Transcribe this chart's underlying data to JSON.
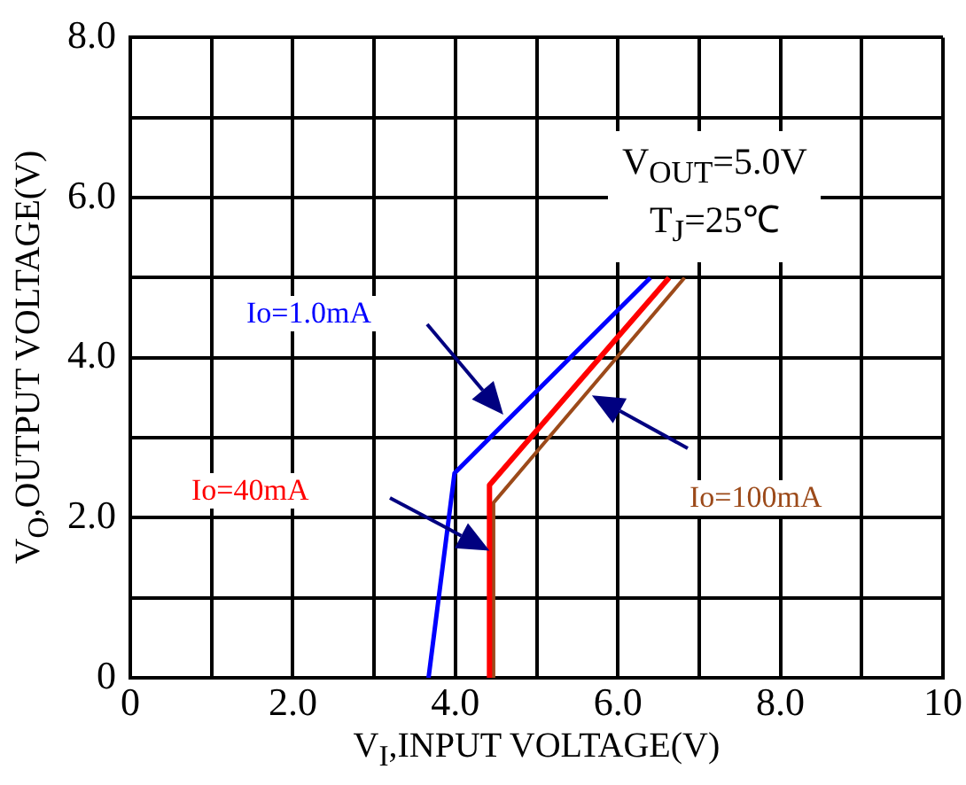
{
  "chart_data": {
    "type": "line",
    "xlabel": "V$_{I}$,INPUT VOLTAGE(V)",
    "ylabel": "V$_{O}$,OUTPUT VOLTAGE(V)",
    "annotations": [
      "V$_{OUT}$=5.0V",
      "T$_{J}$=25℃"
    ],
    "xlim": [
      0,
      10
    ],
    "ylim": [
      0,
      8
    ],
    "xticks": [
      0,
      {
        "value": 1,
        "label": null
      },
      {
        "value": 2,
        "label": "2.0"
      },
      {
        "value": 3,
        "label": null
      },
      {
        "value": 4,
        "label": "4.0"
      },
      {
        "value": 5,
        "label": null
      },
      {
        "value": 6,
        "label": "6.0"
      },
      {
        "value": 7,
        "label": null
      },
      {
        "value": 8,
        "label": "8.0"
      },
      {
        "value": 9,
        "label": null
      },
      10
    ],
    "yticks": [
      0,
      {
        "value": 1,
        "label": null
      },
      {
        "value": 2,
        "label": "2.0"
      },
      {
        "value": 3,
        "label": null
      },
      {
        "value": 4,
        "label": "4.0"
      },
      {
        "value": 5,
        "label": null
      },
      {
        "value": 6,
        "label": "6.0"
      },
      {
        "value": 7,
        "label": null
      },
      {
        "value": 8,
        "label": "8.0"
      }
    ],
    "grid": true,
    "legend": false,
    "marker": "none",
    "line_style": "solid",
    "series": [
      {
        "name": "Io=1.0mA",
        "color": "#0000ff",
        "x": [
          3.67,
          3.99,
          6.4
        ],
        "values": [
          0,
          2.56,
          5.0
        ]
      },
      {
        "name": "Io=40mA",
        "color": "#ff0000",
        "x": [
          4.42,
          4.42,
          6.63
        ],
        "values": [
          0,
          2.41,
          5.0
        ]
      },
      {
        "name": "Io=100mA",
        "color": "#9c4a1a",
        "x": [
          4.47,
          4.47,
          6.82
        ],
        "values": [
          0,
          2.19,
          5.0
        ]
      }
    ]
  }
}
